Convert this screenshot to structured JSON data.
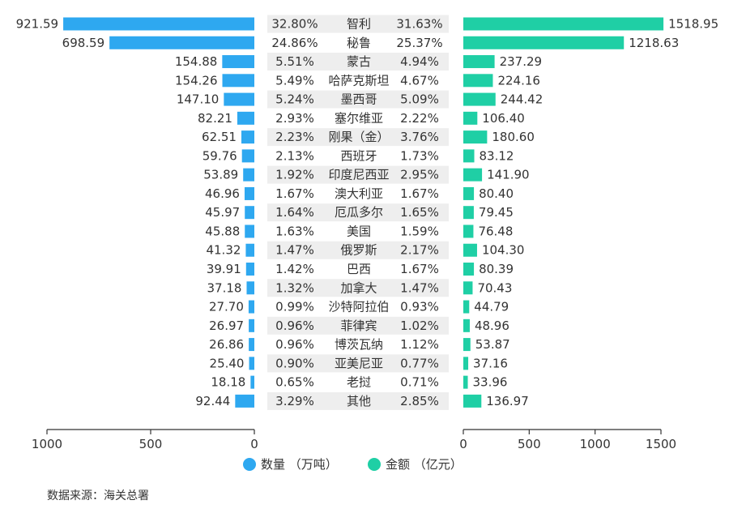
{
  "chart_data": {
    "type": "bar",
    "orientation": "horizontal-butterfly",
    "categories": [
      "智利",
      "秘鲁",
      "蒙古",
      "哈萨克斯坦",
      "墨西哥",
      "塞尔维亚",
      "刚果（金）",
      "西班牙",
      "印度尼西亚",
      "澳大利亚",
      "厄瓜多尔",
      "美国",
      "俄罗斯",
      "巴西",
      "加拿大",
      "沙特阿拉伯",
      "菲律宾",
      "博茨瓦纳",
      "亚美尼亚",
      "老挝",
      "其他"
    ],
    "series": [
      {
        "name": "数量  （万吨）",
        "color": "#2ea8f0",
        "values": [
          921.59,
          698.59,
          154.88,
          154.26,
          147.1,
          82.21,
          62.51,
          59.76,
          53.89,
          46.96,
          45.97,
          45.88,
          41.32,
          39.91,
          37.18,
          27.7,
          26.97,
          26.86,
          25.4,
          18.18,
          92.44
        ],
        "value_labels": [
          "921.59",
          "698.59",
          "154.88",
          "154.26",
          "147.10",
          "82.21",
          "62.51",
          "59.76",
          "53.89",
          "46.96",
          "45.97",
          "45.88",
          "41.32",
          "39.91",
          "37.18",
          "27.70",
          "26.97",
          "26.86",
          "25.40",
          "18.18",
          "92.44"
        ],
        "shares": [
          "32.80%",
          "24.86%",
          "5.51%",
          "5.49%",
          "5.24%",
          "2.93%",
          "2.23%",
          "2.13%",
          "1.92%",
          "1.67%",
          "1.64%",
          "1.63%",
          "1.47%",
          "1.42%",
          "1.32%",
          "0.99%",
          "0.96%",
          "0.96%",
          "0.90%",
          "0.65%",
          "3.29%"
        ],
        "xlim": [
          0,
          1000
        ],
        "ticks": [
          "1000",
          "500",
          "0"
        ],
        "tick_values": [
          1000,
          500,
          0
        ]
      },
      {
        "name": "金额  （亿元）",
        "color": "#1fcfa5",
        "values": [
          1518.95,
          1218.63,
          237.29,
          224.16,
          244.42,
          106.4,
          180.6,
          83.12,
          141.9,
          80.4,
          79.45,
          76.48,
          104.3,
          80.39,
          70.43,
          44.79,
          48.96,
          53.87,
          37.16,
          33.96,
          136.97
        ],
        "value_labels": [
          "1518.95",
          "1218.63",
          "237.29",
          "224.16",
          "244.42",
          "106.40",
          "180.60",
          "83.12",
          "141.90",
          "80.40",
          "79.45",
          "76.48",
          "104.30",
          "80.39",
          "70.43",
          "44.79",
          "48.96",
          "53.87",
          "37.16",
          "33.96",
          "136.97"
        ],
        "shares": [
          "31.63%",
          "25.37%",
          "4.94%",
          "4.67%",
          "5.09%",
          "2.22%",
          "3.76%",
          "1.73%",
          "2.95%",
          "1.67%",
          "1.65%",
          "1.59%",
          "2.17%",
          "1.67%",
          "1.47%",
          "0.93%",
          "1.02%",
          "1.12%",
          "0.77%",
          "0.71%",
          "2.85%"
        ],
        "xlim": [
          0,
          1500
        ],
        "ticks": [
          "0",
          "500",
          "1000",
          "1500"
        ],
        "tick_values": [
          0,
          500,
          1000,
          1500
        ]
      }
    ],
    "legend_position": "bottom-center",
    "grid": false
  },
  "source_text": "数据来源：海关总署",
  "colors": {
    "band": "#eeeeee",
    "axis": "#333333"
  }
}
